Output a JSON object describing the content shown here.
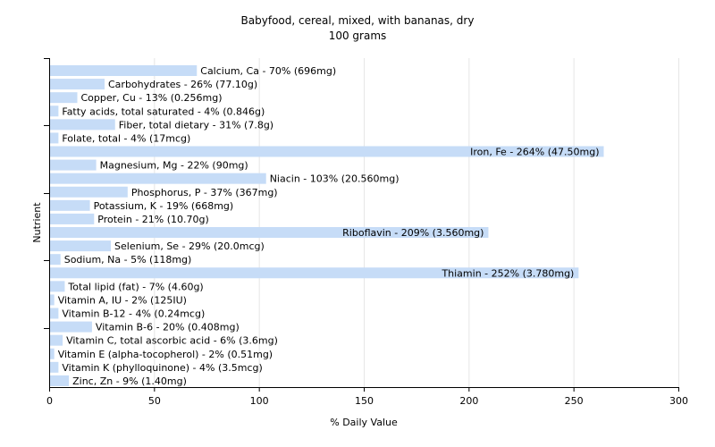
{
  "chart_data": {
    "type": "bar",
    "orientation": "horizontal",
    "title": "Babyfood, cereal, mixed, with bananas, dry",
    "subtitle": "100 grams",
    "xlabel": "% Daily Value",
    "ylabel": "Nutrient",
    "xlim": [
      0,
      300
    ],
    "xticks": [
      0,
      50,
      100,
      150,
      200,
      250,
      300
    ],
    "grid": "vertical",
    "bar_color": "#c6dcf7",
    "categories": [
      "Calcium, Ca",
      "Carbohydrates",
      "Copper, Cu",
      "Fatty acids, total saturated",
      "Fiber, total dietary",
      "Folate, total",
      "Iron, Fe",
      "Magnesium, Mg",
      "Niacin",
      "Phosphorus, P",
      "Potassium, K",
      "Protein",
      "Riboflavin",
      "Selenium, Se",
      "Sodium, Na",
      "Thiamin",
      "Total lipid (fat)",
      "Vitamin A, IU",
      "Vitamin B-12",
      "Vitamin B-6",
      "Vitamin C, total ascorbic acid",
      "Vitamin E (alpha-tocopherol)",
      "Vitamin K (phylloquinone)",
      "Zinc, Zn"
    ],
    "values": [
      70,
      26,
      13,
      4,
      31,
      4,
      264,
      22,
      103,
      37,
      19,
      21,
      209,
      29,
      5,
      252,
      7,
      2,
      4,
      20,
      6,
      2,
      4,
      9
    ],
    "labels": [
      "Calcium, Ca - 70% (696mg)",
      "Carbohydrates - 26% (77.10g)",
      "Copper, Cu - 13% (0.256mg)",
      "Fatty acids, total saturated - 4% (0.846g)",
      "Fiber, total dietary - 31% (7.8g)",
      "Folate, total - 4% (17mcg)",
      "Iron, Fe - 264% (47.50mg)",
      "Magnesium, Mg - 22% (90mg)",
      "Niacin - 103% (20.560mg)",
      "Phosphorus, P - 37% (367mg)",
      "Potassium, K - 19% (668mg)",
      "Protein - 21% (10.70g)",
      "Riboflavin - 209% (3.560mg)",
      "Selenium, Se - 29% (20.0mcg)",
      "Sodium, Na - 5% (118mg)",
      "Thiamin - 252% (3.780mg)",
      "Total lipid (fat) - 7% (4.60g)",
      "Vitamin A, IU - 2% (125IU)",
      "Vitamin B-12 - 4% (0.24mcg)",
      "Vitamin B-6 - 20% (0.408mg)",
      "Vitamin C, total ascorbic acid - 6% (3.6mg)",
      "Vitamin E (alpha-tocopherol) - 2% (0.51mg)",
      "Vitamin K (phylloquinone) - 4% (3.5mcg)",
      "Zinc, Zn - 9% (1.40mg)"
    ]
  }
}
